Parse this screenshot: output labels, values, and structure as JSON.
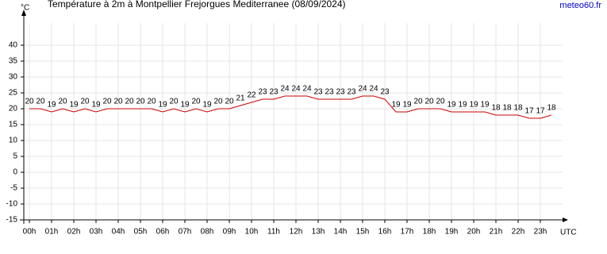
{
  "chart_data": {
    "type": "line",
    "title": "Température à 2m à Montpellier Frejorgues Mediterranee (08/09/2024)",
    "source": "meteo60.fr",
    "y_label": "°C",
    "x_label": "UTC",
    "x": [
      0,
      0.5,
      1,
      1.5,
      2,
      2.5,
      3,
      3.5,
      4,
      4.5,
      5,
      5.5,
      6,
      6.5,
      7,
      7.5,
      8,
      8.5,
      9,
      9.5,
      10,
      10.5,
      11,
      11.5,
      12,
      12.5,
      13,
      13.5,
      14,
      14.5,
      15,
      15.5,
      16,
      16.5,
      17,
      17.5,
      18,
      18.5,
      19,
      19.5,
      20,
      20.5,
      21,
      21.5,
      22,
      22.5,
      23,
      23.5
    ],
    "series": [
      {
        "name": "Température",
        "color": "#cc0000",
        "values": [
          20,
          20,
          19,
          20,
          19,
          20,
          19,
          20,
          20,
          20,
          20,
          20,
          19,
          20,
          19,
          20,
          19,
          20,
          20,
          21,
          22,
          23,
          23,
          24,
          24,
          24,
          23,
          23,
          23,
          23,
          24,
          24,
          23,
          19,
          19,
          20,
          20,
          20,
          19,
          19,
          19,
          19,
          18,
          18,
          18,
          17,
          17,
          18
        ]
      }
    ],
    "xlim": [
      -0.25,
      24
    ],
    "xticks": [
      {
        "value": 0,
        "label": "00h"
      },
      {
        "value": 1,
        "label": "01h"
      },
      {
        "value": 2,
        "label": "02h"
      },
      {
        "value": 3,
        "label": "03h"
      },
      {
        "value": 4,
        "label": "04h"
      },
      {
        "value": 5,
        "label": "05h"
      },
      {
        "value": 6,
        "label": "06h"
      },
      {
        "value": 7,
        "label": "07h"
      },
      {
        "value": 8,
        "label": "08h"
      },
      {
        "value": 9,
        "label": "09h"
      },
      {
        "value": 10,
        "label": "10h"
      },
      {
        "value": 11,
        "label": "11h"
      },
      {
        "value": 12,
        "label": "12h"
      },
      {
        "value": 13,
        "label": "13h"
      },
      {
        "value": 14,
        "label": "14h"
      },
      {
        "value": 15,
        "label": "15h"
      },
      {
        "value": 16,
        "label": "16h"
      },
      {
        "value": 17,
        "label": "17h"
      },
      {
        "value": 18,
        "label": "18h"
      },
      {
        "value": 19,
        "label": "19h"
      },
      {
        "value": 20,
        "label": "20h"
      },
      {
        "value": 21,
        "label": "21h"
      },
      {
        "value": 22,
        "label": "22h"
      },
      {
        "value": 23,
        "label": "23h"
      }
    ],
    "ylim": [
      -15,
      47
    ],
    "yticks": [
      -15,
      -10,
      -5,
      0,
      5,
      10,
      15,
      20,
      25,
      30,
      35,
      40
    ],
    "grid": true
  }
}
